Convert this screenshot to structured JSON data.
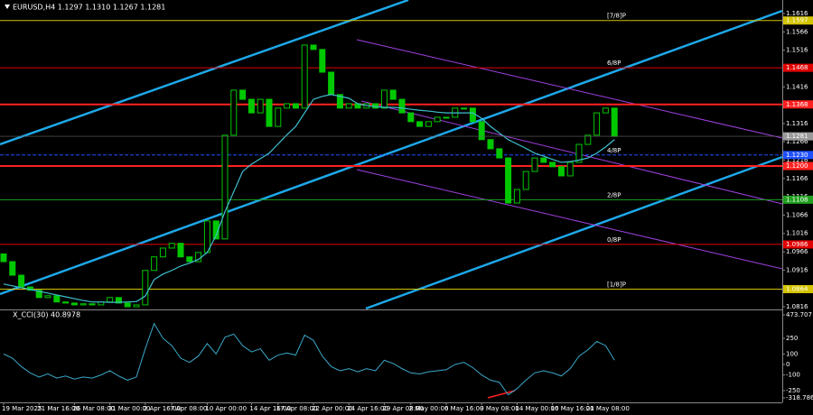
{
  "chart_data": {
    "type": "candlestick",
    "header": "EURUSD,H4  1.1297 1.1310 1.1267 1.1281",
    "ylim": [
      1.0811,
      1.1653
    ],
    "yticks": [
      1.1616,
      1.1566,
      1.1516,
      1.1466,
      1.1416,
      1.1366,
      1.1316,
      1.1266,
      1.1216,
      1.1166,
      1.1116,
      1.1066,
      1.1016,
      1.0966,
      1.0916,
      1.0866,
      1.0816
    ],
    "color": "#00c800",
    "categories": [
      "19 Mar 2025",
      null,
      null,
      null,
      "21 Mar 16:00",
      null,
      null,
      null,
      "26 Mar 08:00",
      null,
      null,
      null,
      "31 Mar 00:00",
      null,
      null,
      null,
      "2 Apr 16:00",
      null,
      null,
      "7 Apr 08:00",
      null,
      null,
      null,
      "10 Apr 00:00",
      null,
      null,
      null,
      null,
      "14 Apr 16:00",
      null,
      null,
      "17 Apr 08:00",
      null,
      null,
      null,
      "22 Apr 00:00",
      null,
      null,
      null,
      "24 Apr 16:00",
      null,
      null,
      null,
      "29 Apr 08:00",
      null,
      null,
      "2 May 00:00",
      null,
      null,
      null,
      "6 May 16:00",
      null,
      null,
      null,
      "9 May 08:00",
      null,
      null,
      null,
      "14 May 00:00",
      null,
      null,
      null,
      "16 May 16:00",
      null,
      null,
      null,
      "21 May 08:00",
      null,
      null,
      null
    ],
    "open": [
      1.096,
      1.0939,
      1.0902,
      1.087,
      1.0861,
      1.0841,
      1.0846,
      1.0829,
      1.0826,
      1.0821,
      1.0824,
      1.0821,
      1.0829,
      1.0841,
      1.0826,
      1.0816,
      1.0821,
      1.0915,
      1.0952,
      1.0976,
      1.0989,
      1.0952,
      1.0939,
      1.0964,
      1.105,
      1.1001,
      1.1284,
      1.1407,
      1.1382,
      1.1345,
      1.1382,
      1.1308,
      1.1358,
      1.137,
      1.1358,
      1.153,
      1.1518,
      1.1456,
      1.1395,
      1.1358,
      1.137,
      1.1358,
      1.137,
      1.1358,
      1.1407,
      1.1382,
      1.1345,
      1.1321,
      1.1308,
      1.1321,
      1.1333,
      1.1333,
      1.1358,
      1.1358,
      1.1321,
      1.1272,
      1.1247,
      1.1222,
      1.1099,
      1.1136,
      1.1185,
      1.1222,
      1.121,
      1.1198,
      1.1173,
      1.121,
      1.1259,
      1.1284,
      1.1345,
      1.1358
    ],
    "close": [
      1.0939,
      1.0902,
      1.087,
      1.0861,
      1.0841,
      1.0846,
      1.0829,
      1.0826,
      1.0821,
      1.0824,
      1.0821,
      1.0829,
      1.0841,
      1.0826,
      1.0816,
      1.0821,
      1.0915,
      1.0952,
      1.0976,
      1.0989,
      1.0952,
      1.0939,
      1.0964,
      1.105,
      1.1001,
      1.1284,
      1.1407,
      1.1382,
      1.1345,
      1.1382,
      1.1308,
      1.1358,
      1.137,
      1.1358,
      1.153,
      1.1518,
      1.1456,
      1.1395,
      1.1358,
      1.137,
      1.1358,
      1.137,
      1.1358,
      1.1407,
      1.1382,
      1.1345,
      1.1321,
      1.1308,
      1.1321,
      1.1333,
      1.1333,
      1.1358,
      1.1358,
      1.1321,
      1.1272,
      1.1247,
      1.1222,
      1.1099,
      1.1136,
      1.1185,
      1.1222,
      1.121,
      1.1198,
      1.1173,
      1.121,
      1.1259,
      1.1284,
      1.1345,
      1.1358,
      1.1281
    ],
    "ma": {
      "color": "#40c0d0",
      "values": [
        1.0878,
        1.0873,
        1.0868,
        1.0863,
        1.0858,
        1.0853,
        1.0848,
        1.0843,
        1.0838,
        1.0833,
        1.0829,
        1.0829,
        1.0828,
        1.0828,
        1.0829,
        1.083,
        1.0845,
        1.089,
        1.0905,
        1.0915,
        1.0927,
        1.0935,
        1.0945,
        1.0964,
        1.101,
        1.1075,
        1.113,
        1.1185,
        1.1205,
        1.122,
        1.1235,
        1.126,
        1.1285,
        1.1308,
        1.1345,
        1.1382,
        1.139,
        1.1395,
        1.139,
        1.1385,
        1.137,
        1.1365,
        1.1362,
        1.136,
        1.136,
        1.1358,
        1.1355,
        1.1352,
        1.135,
        1.1347,
        1.1345,
        1.1345,
        1.1345,
        1.1345,
        1.133,
        1.1308,
        1.129,
        1.1272,
        1.126,
        1.1248,
        1.1235,
        1.1227,
        1.1218,
        1.121,
        1.1212,
        1.1216,
        1.1222,
        1.1235,
        1.1252,
        1.1272
      ]
    },
    "levels": [
      {
        "value": 1.1597,
        "value_label": "1.1597",
        "name": "[7/8]P",
        "color": "#d4c400"
      },
      {
        "value": 1.1468,
        "value_label": "1.1468",
        "name": "6/8P",
        "color": "#e00000"
      },
      {
        "value": 1.1368,
        "value_label": "1.1368",
        "color": "#ff2020"
      },
      {
        "value": 1.123,
        "value_label": "1.1230",
        "name": "4/8P",
        "color": "#2050ff"
      },
      {
        "value": 1.12,
        "value_label": "1.1200",
        "color": "#ff2020"
      },
      {
        "value": 1.1108,
        "value_label": "1.1108",
        "name": "2/8P",
        "color": "#20a020"
      },
      {
        "value": 1.0986,
        "value_label": "1.0986",
        "name": "0/8P",
        "color": "#e00000"
      },
      {
        "value": 1.0864,
        "value_label": "1.0864",
        "name": "[1/8]P",
        "color": "#d4c400"
      }
    ],
    "last_price": 1.1281,
    "indicator": {
      "title": "X_CCI(30) 40.8978",
      "color": "#3aa8c8",
      "ylim": [
        -318.786,
        473.707
      ],
      "yticks": [
        473.707,
        250,
        100,
        0,
        -100,
        -250,
        -318.786
      ],
      "values": [
        100,
        60,
        -20,
        -80,
        -120,
        -90,
        -130,
        -110,
        -140,
        -120,
        -130,
        -100,
        -60,
        -110,
        -150,
        -120,
        150,
        390,
        250,
        180,
        60,
        20,
        80,
        200,
        100,
        260,
        290,
        180,
        120,
        150,
        40,
        90,
        110,
        90,
        280,
        230,
        80,
        -20,
        -60,
        -40,
        -70,
        -40,
        -60,
        40,
        10,
        -40,
        -80,
        -90,
        -70,
        -60,
        -50,
        0,
        20,
        -30,
        -100,
        -150,
        -170,
        -290,
        -230,
        -150,
        -80,
        -60,
        -80,
        -110,
        -40,
        80,
        140,
        220,
        180,
        41
      ]
    }
  }
}
